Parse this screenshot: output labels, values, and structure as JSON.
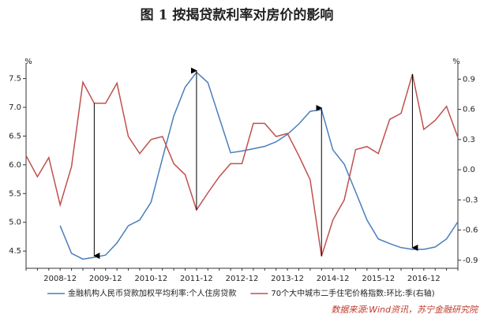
{
  "chart_data": {
    "type": "line",
    "title": "图 1  按揭贷款利率对房价的影响",
    "y_unit": "%",
    "y2_unit": "%",
    "source": "数据来源:Wind资讯，苏宁金融研究院",
    "categories": [
      null,
      null,
      null,
      "2008-12",
      null,
      null,
      null,
      "2009-12",
      null,
      null,
      null,
      "2010-12",
      null,
      null,
      null,
      "2011-12",
      null,
      null,
      null,
      "2012-12",
      null,
      null,
      null,
      "2013-12",
      null,
      null,
      null,
      "2014-12",
      null,
      null,
      null,
      "2015-12",
      null,
      null,
      null,
      "2016-12",
      null,
      null,
      null
    ],
    "series": [
      {
        "name": "金融机构人民币贷款加权平均利率:个人住房贷款",
        "color": "#4a7ebb",
        "axis": "y",
        "values": [
          null,
          null,
          null,
          4.94,
          4.46,
          4.36,
          4.39,
          4.43,
          4.64,
          4.94,
          5.04,
          5.35,
          6.11,
          6.85,
          7.35,
          7.61,
          7.43,
          6.82,
          6.21,
          6.24,
          6.28,
          6.32,
          6.4,
          6.53,
          6.71,
          6.93,
          6.96,
          6.26,
          6.01,
          5.53,
          5.04,
          4.71,
          4.63,
          4.56,
          4.53,
          4.53,
          4.57,
          4.71,
          5.01
        ]
      },
      {
        "name": "70个大中城市二手住宅价格指数:环比:季(右轴)",
        "color": "#c0504d",
        "axis": "y2",
        "values": [
          0.14,
          -0.07,
          0.12,
          -0.35,
          0.03,
          0.87,
          0.66,
          0.66,
          0.86,
          0.33,
          0.16,
          0.3,
          0.33,
          0.06,
          -0.05,
          -0.4,
          -0.23,
          -0.07,
          0.06,
          0.06,
          0.46,
          0.46,
          0.33,
          0.36,
          0.14,
          -0.1,
          -0.86,
          -0.5,
          -0.3,
          0.2,
          0.23,
          0.16,
          0.5,
          0.56,
          0.95,
          0.4,
          0.49,
          0.63,
          0.32
        ]
      }
    ],
    "ylim": [
      4.2,
      7.7
    ],
    "yticks": [
      4.5,
      {
        "value": 5,
        "label": "5.0"
      },
      5.5,
      {
        "value": 6,
        "label": "6.0"
      },
      6.5,
      {
        "value": 7,
        "label": "7.0"
      },
      7.5
    ],
    "y2lim": [
      -0.98,
      1.02
    ],
    "y2ticks": [
      -0.9,
      -0.6,
      -0.3,
      {
        "value": 0,
        "label": "0.0"
      },
      0.3,
      0.6,
      0.9
    ],
    "grid": false
  }
}
